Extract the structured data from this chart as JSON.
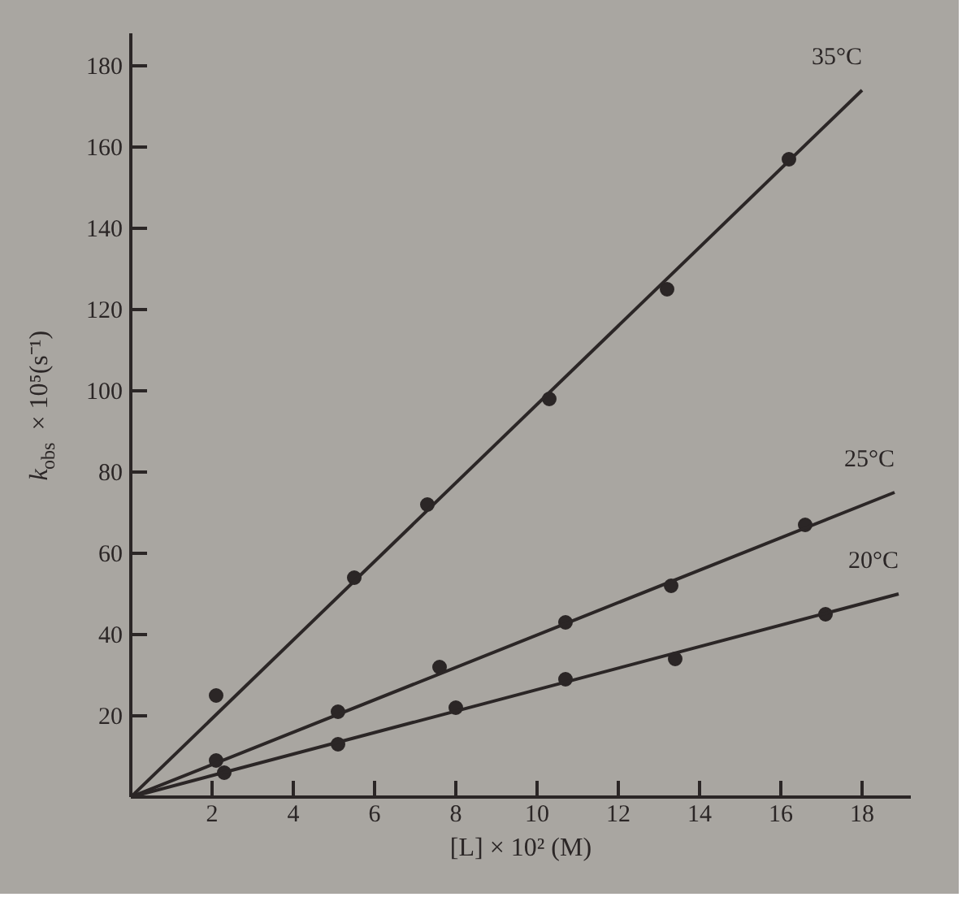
{
  "chart_data": {
    "type": "scatter",
    "xlabel": "[L] × 10² (M)",
    "ylabel": "k$_{obs}$ × 10⁵(s⁻¹)",
    "xlim": [
      0,
      19.2
    ],
    "ylim": [
      0,
      188
    ],
    "xticks": [
      2,
      4,
      6,
      8,
      10,
      12,
      14,
      16,
      18
    ],
    "yticks": [
      20,
      40,
      60,
      80,
      100,
      120,
      140,
      160,
      180
    ],
    "grid": false,
    "series": [
      {
        "marker": "circle",
        "color": "#2b2626",
        "x": [
          2.1,
          5.5,
          7.3,
          10.3,
          13.2,
          16.2
        ],
        "values": [
          25,
          54,
          72,
          98,
          125,
          157
        ]
      },
      {
        "marker": "circle",
        "color": "#2b2626",
        "x": [
          2.1,
          5.1,
          7.6,
          10.7,
          13.3,
          16.6
        ],
        "values": [
          9,
          21,
          32,
          43,
          52,
          67
        ]
      },
      {
        "marker": "circle",
        "color": "#2b2626",
        "x": [
          2.3,
          5.1,
          8.0,
          10.7,
          13.4,
          17.1
        ],
        "values": [
          6,
          13,
          22,
          29,
          34,
          45
        ]
      },
      {
        "type": "line",
        "marker": "none",
        "name": "35°C",
        "color": "#2b2626",
        "x": [
          0,
          18.0
        ],
        "values": [
          0,
          174
        ]
      },
      {
        "type": "line",
        "marker": "none",
        "name": "25°C",
        "color": "#2b2626",
        "x": [
          0,
          18.8
        ],
        "values": [
          0,
          75
        ]
      },
      {
        "type": "line",
        "marker": "none",
        "name": "20°C",
        "color": "#2b2626",
        "x": [
          0,
          18.9
        ],
        "values": [
          0,
          50
        ]
      }
    ]
  }
}
